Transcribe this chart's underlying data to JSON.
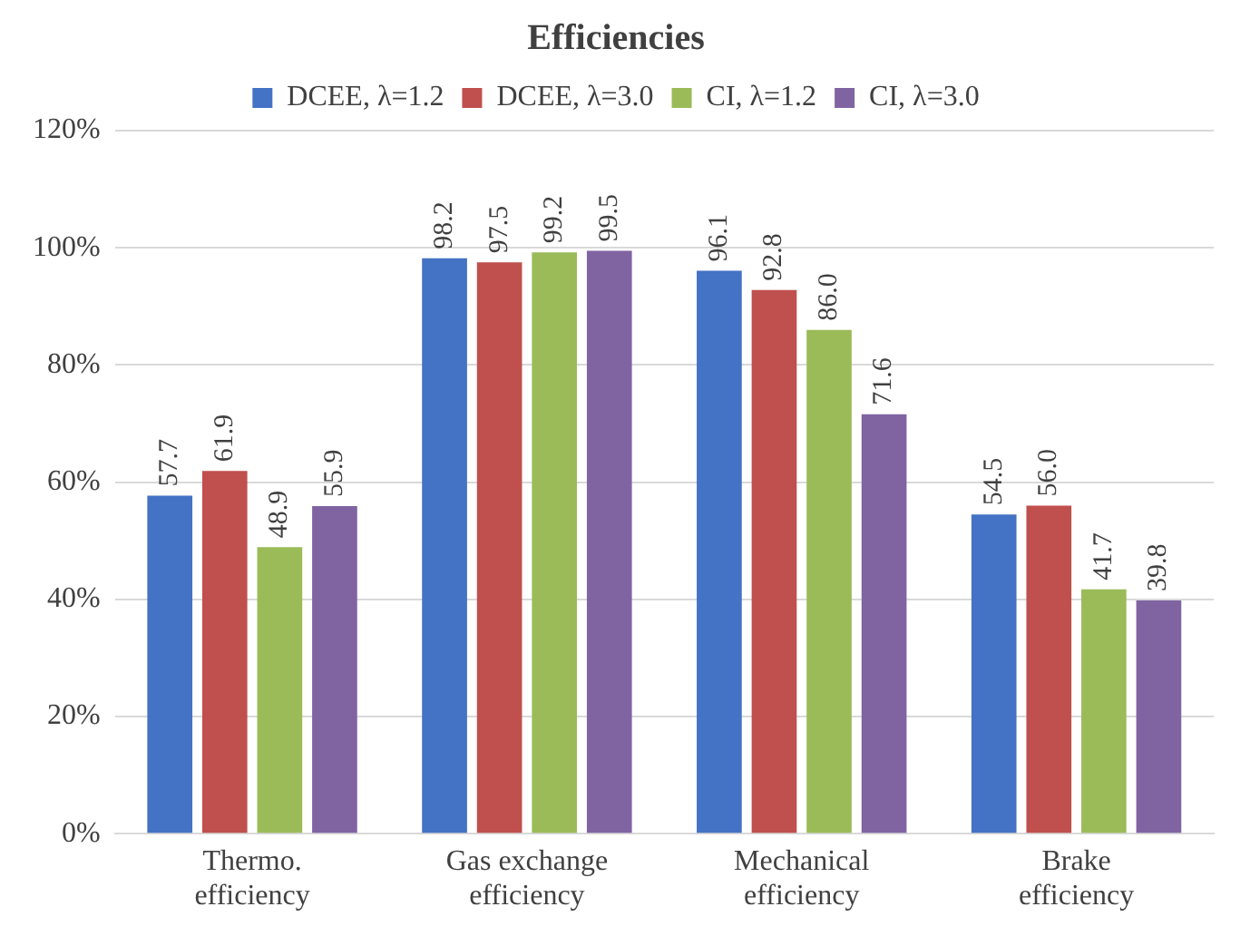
{
  "chart_data": {
    "type": "bar",
    "title": "Efficiencies",
    "categories": [
      "Thermo. efficiency",
      "Gas exchange efficiency",
      "Mechanical efficiency",
      "Brake efficiency"
    ],
    "series": [
      {
        "name": "DCEE, λ=1.2",
        "color": "#4472c4",
        "values": [
          57.7,
          98.2,
          96.1,
          54.5
        ],
        "value_labels": [
          "57.7",
          "98.2",
          "96.1",
          "54.5"
        ]
      },
      {
        "name": "DCEE, λ=3.0",
        "color": "#c0504d",
        "values": [
          61.9,
          97.5,
          92.8,
          56.0
        ],
        "value_labels": [
          "61.9",
          "97.5",
          "92.8",
          "56.0"
        ]
      },
      {
        "name": "CI, λ=1.2",
        "color": "#9bbb59",
        "values": [
          48.9,
          99.2,
          86.0,
          41.7
        ],
        "value_labels": [
          "48.9",
          "99.2",
          "86.0",
          "41.7"
        ]
      },
      {
        "name": "CI, λ=3.0",
        "color": "#8064a2",
        "values": [
          55.9,
          99.5,
          71.6,
          39.8
        ],
        "value_labels": [
          "55.9",
          "99.5",
          "71.6",
          "39.8"
        ]
      }
    ],
    "ylim": [
      0,
      120
    ],
    "yticks": [
      {
        "value": 0,
        "label": "0%"
      },
      {
        "value": 20,
        "label": "20%"
      },
      {
        "value": 40,
        "label": "40%"
      },
      {
        "value": 60,
        "label": "60%"
      },
      {
        "value": 80,
        "label": "80%"
      },
      {
        "value": 100,
        "label": "100%"
      },
      {
        "value": 120,
        "label": "120%"
      }
    ],
    "grid": "y",
    "legend": "top"
  }
}
